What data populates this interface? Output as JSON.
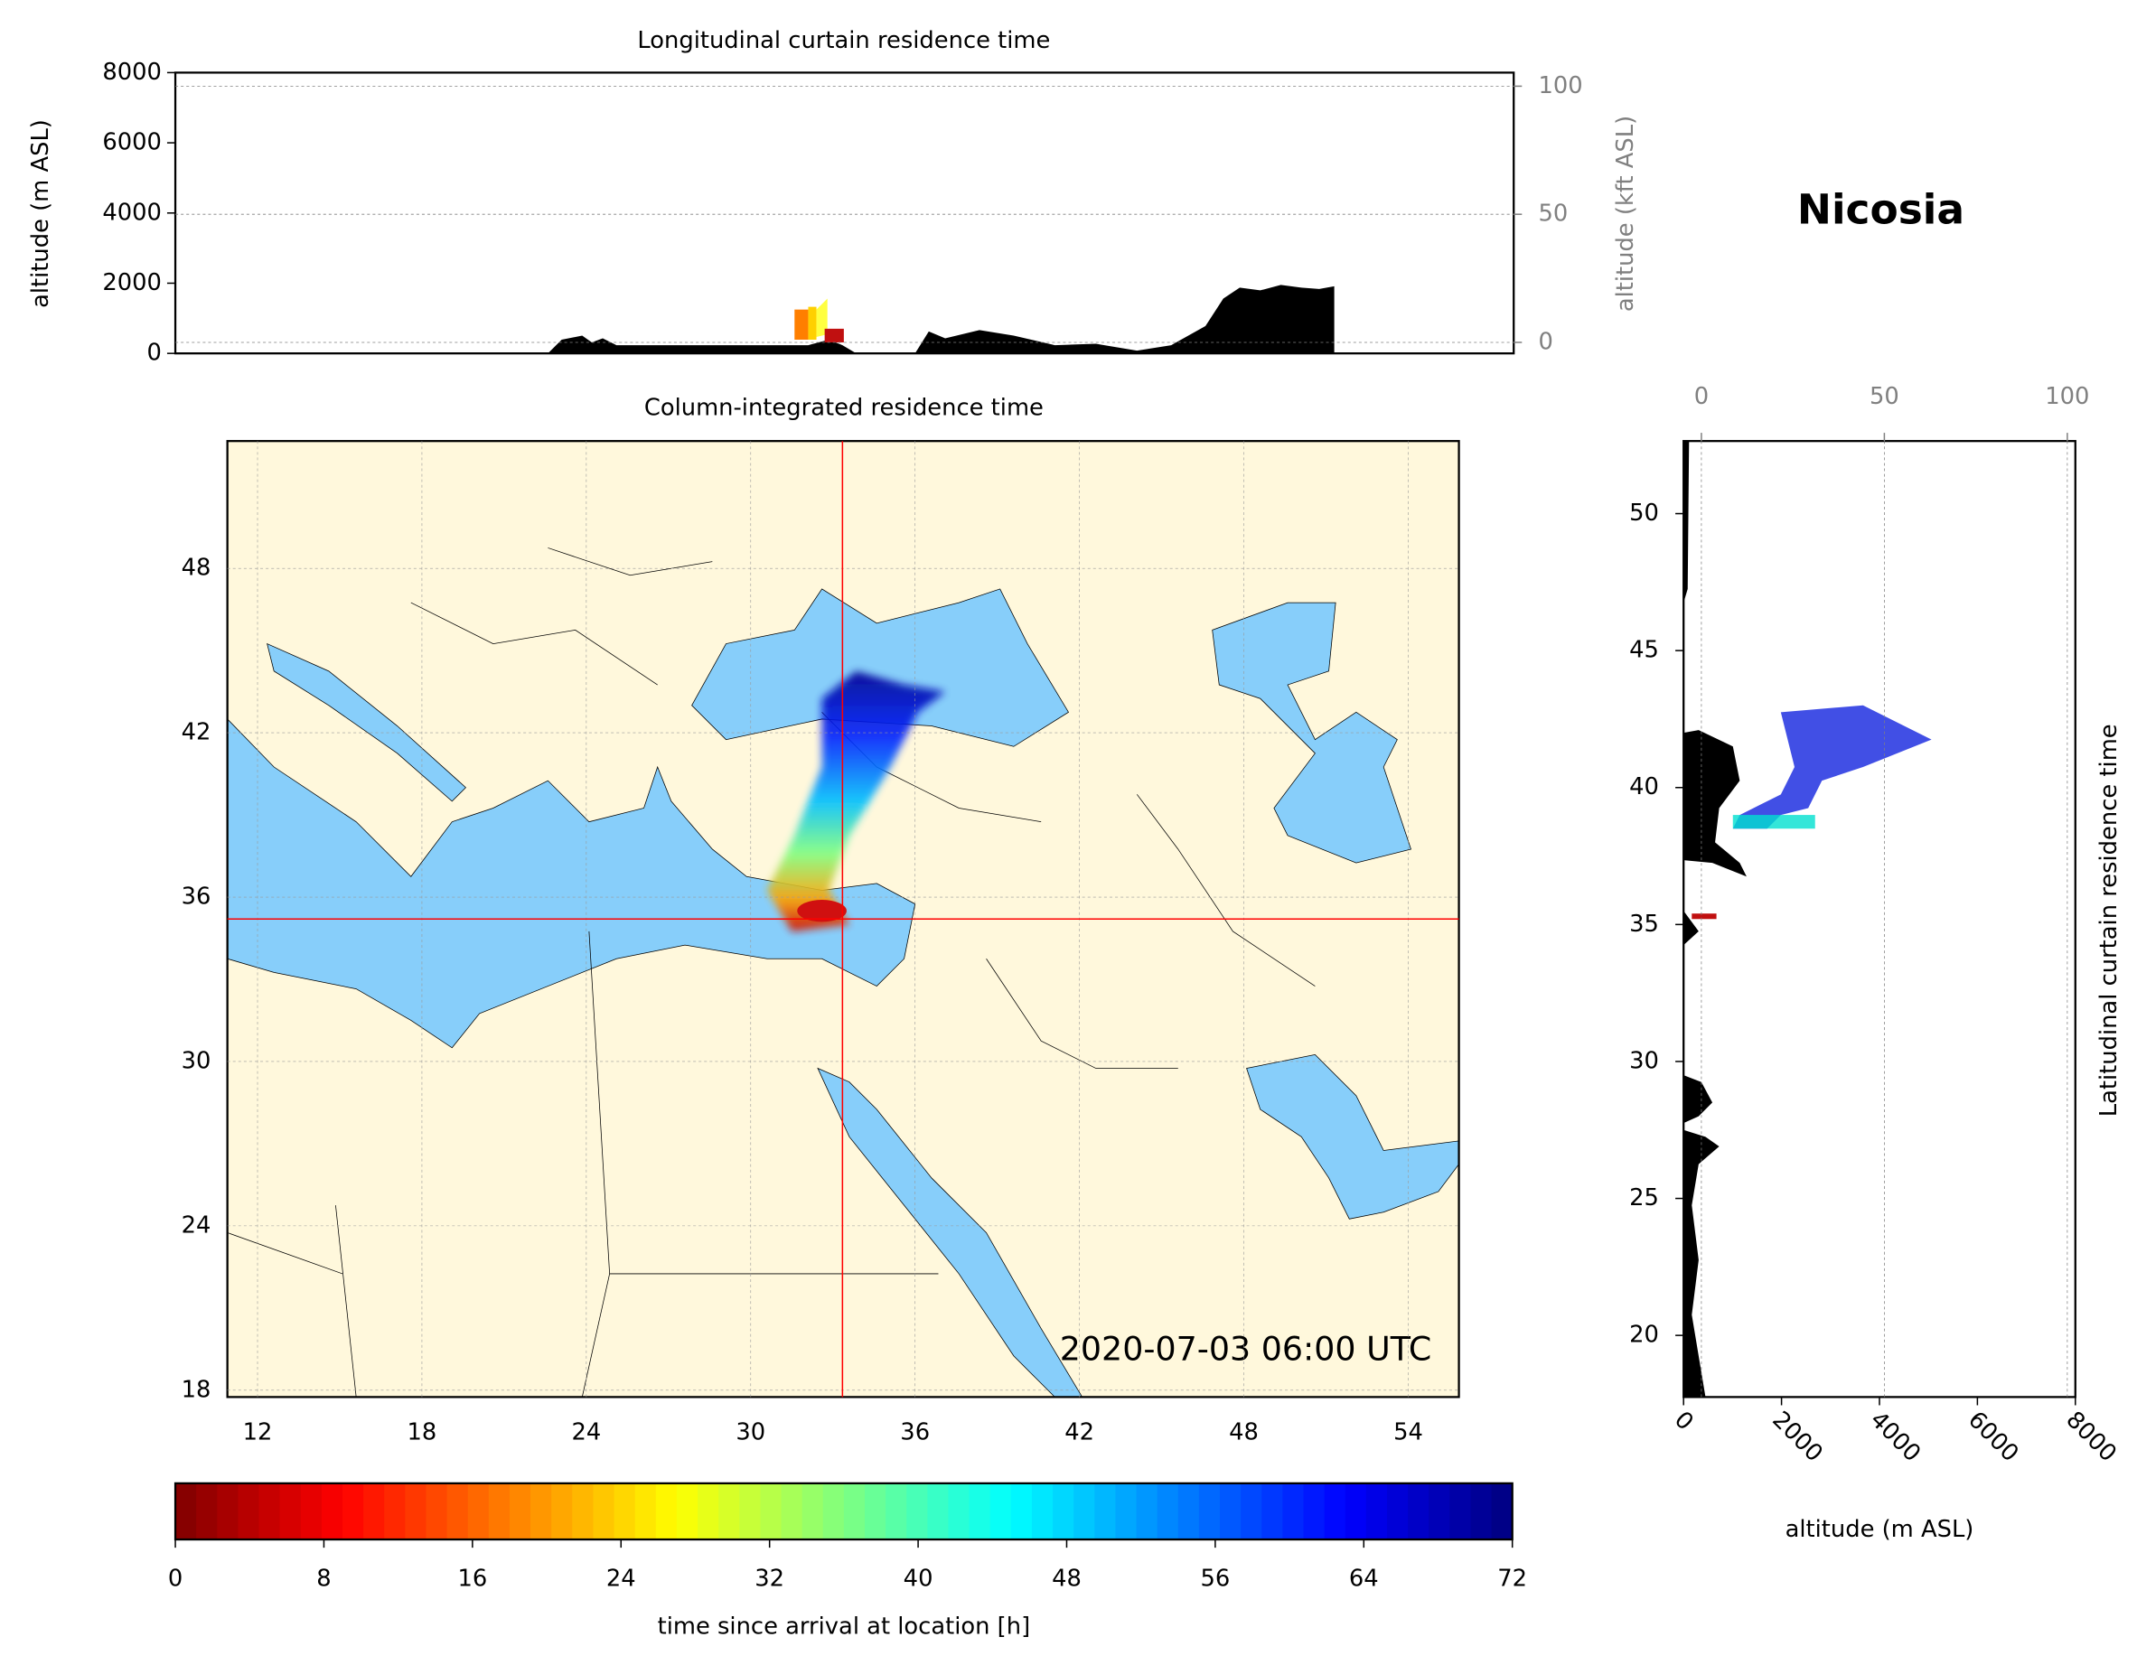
{
  "chart_data": [
    {
      "type": "curtain",
      "orientation": "vertical",
      "title": "Longitudinal curtain residence time",
      "ylabel": "altitude (m ASL)",
      "y2label": "altitude (kft ASL)",
      "ylim": [
        0,
        8000
      ],
      "yticks": [
        0,
        2000,
        4000,
        6000,
        8000
      ],
      "y2lim": [
        -4.3,
        105.3
      ],
      "y2ticks": [
        0,
        50,
        100
      ],
      "grid": true
    },
    {
      "type": "map",
      "title": "Column-integrated residence time",
      "xlim": [
        10.9,
        55.85
      ],
      "ylim": [
        17.75,
        52.65
      ],
      "xticks": [
        12,
        18,
        24,
        30,
        36,
        42,
        48,
        54
      ],
      "yticks": [
        18,
        24,
        30,
        36,
        42,
        48
      ],
      "annotation": "2020-07-03 06:00 UTC",
      "location": {
        "name": "Nicosia",
        "lon": 33.35,
        "lat": 35.2
      },
      "grid": true
    },
    {
      "type": "curtain",
      "orientation": "horizontal",
      "ylabel": "Latitudinal curtain residence time",
      "xlabel": "altitude (m ASL)",
      "xlim": [
        0,
        8000
      ],
      "xticks": [
        0,
        2000,
        4000,
        6000,
        8000
      ],
      "x2lim": [
        -4.87,
        102.2
      ],
      "x2ticks": [
        0,
        50,
        100
      ],
      "ylim": [
        17.75,
        52.65
      ],
      "yticks": [
        20,
        25,
        30,
        35,
        40,
        45,
        50
      ],
      "grid": true
    },
    {
      "type": "colorbar",
      "xlim": [
        0,
        72
      ],
      "xticks": [
        0,
        8,
        16,
        24,
        32,
        40,
        48,
        56,
        64,
        72
      ],
      "xlabel": "time since arrival at location [h]",
      "colormap": "jet"
    }
  ]
}
